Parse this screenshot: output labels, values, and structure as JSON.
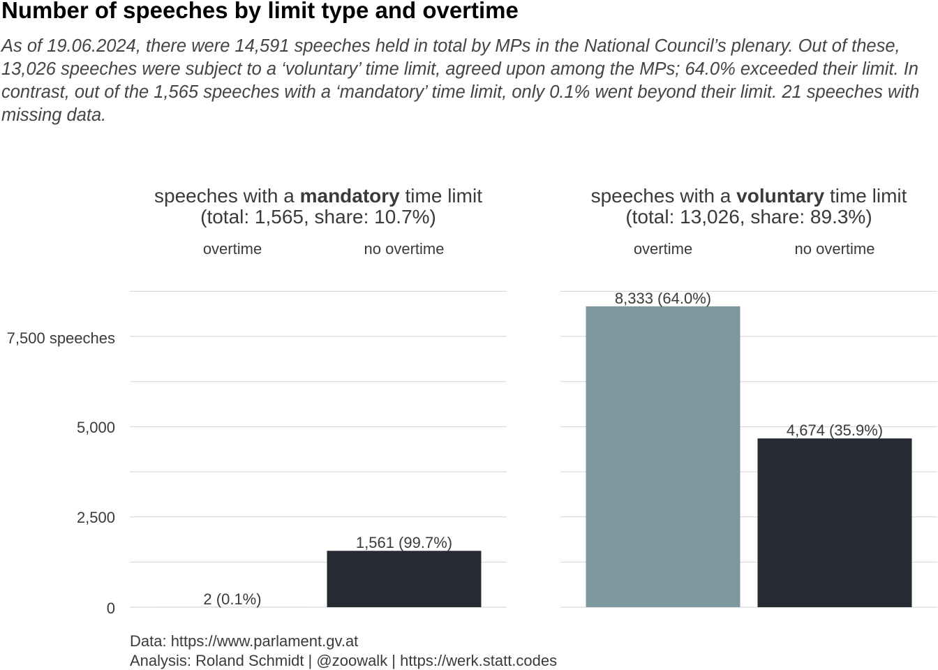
{
  "title": "Number of speeches by limit type and overtime",
  "subtitle": "As of 19.06.2024, there were 14,591 speeches held in total by MPs in the National Council’s plenary. Out of these, 13,026 speeches were subject to a ‘voluntary’ time limit, agreed upon among the MPs; 64.0% exceeded their limit. In contrast, out of the 1,565 speeches with a ‘mandatory’ time limit, only 0.1% went beyond their limit. 21 speeches with missing data.",
  "panels": [
    {
      "prefix": "speeches with a ",
      "bold": "mandatory",
      "suffix": " time limit",
      "line2": "(total: 1,565, share: 10.7%)"
    },
    {
      "prefix": "speeches with a ",
      "bold": "voluntary",
      "suffix": " time limit",
      "line2": "(total: 13,026, share: 89.3%)"
    }
  ],
  "y_tick_labels": [
    "0",
    "2,500",
    "5,000",
    "7,500 speeches"
  ],
  "caption": {
    "line1": "Data: https://www.parlament.gv.at",
    "line2": "Analysis: Roland Schmidt | @zoowalk | https://werk.statt.codes"
  },
  "colors": {
    "overtime": "#7f979e",
    "no_overtime": "#262a33",
    "grid": "#d3d3d3"
  },
  "chart_data": {
    "type": "bar",
    "facets": [
      "mandatory",
      "voluntary"
    ],
    "categories": [
      "overtime",
      "no overtime"
    ],
    "ylim": [
      0,
      8800
    ],
    "y_ticks": [
      0,
      2500,
      5000,
      7500
    ],
    "grid": true,
    "series": [
      {
        "facet": "mandatory",
        "values": [
          2,
          1561
        ],
        "labels": [
          "2 (0.1%)",
          "1,561 (99.7%)"
        ]
      },
      {
        "facet": "voluntary",
        "values": [
          8333,
          4674
        ],
        "labels": [
          "8,333 (64.0%)",
          "4,674 (35.9%)"
        ]
      }
    ]
  }
}
